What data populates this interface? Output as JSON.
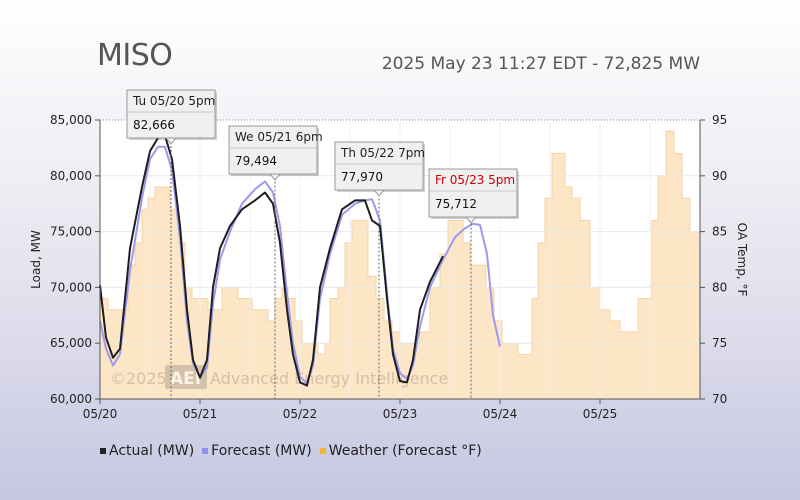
{
  "header": {
    "title": "MISO",
    "subtitle": "2025 May 23 11:27 EDT - 72,825 MW"
  },
  "watermark": "©2025 AEI Advanced Energy Intelligence",
  "watermark_parts": {
    "copyright": "©2025",
    "logo": "AEI",
    "company": "Advanced Energy Intelligence"
  },
  "legend": [
    {
      "label": "Actual (MW)",
      "color": "#222222"
    },
    {
      "label": "Forecast (MW)",
      "color": "#8f8fef"
    },
    {
      "label": "Weather (Forecast °F)",
      "color": "#f5b342"
    }
  ],
  "colors": {
    "actual": "#1e1e1e",
    "forecast": "#9a9af0",
    "weather_fill": "#fde6c6",
    "weather_line": "#f6d3a3",
    "tooltip_bg": "#f0f0f0",
    "tooltip_alert": "#cc0000",
    "grid": "#bbbbbb"
  },
  "chart_data": {
    "type": "line",
    "xlabel": "",
    "ylabel": "Load, MW",
    "y2label": "OA Temp, °F",
    "x_tick_labels": [
      "05/20",
      "05/21",
      "05/22",
      "05/23",
      "05/24",
      "05/25"
    ],
    "x_range_days": [
      0,
      6
    ],
    "ylim": [
      60000,
      85000
    ],
    "y_ticks": [
      "60,000",
      "65,000",
      "70,000",
      "75,000",
      "80,000",
      "85,000"
    ],
    "y2lim": [
      70,
      95
    ],
    "y2_ticks": [
      "70",
      "75",
      "80",
      "85",
      "90",
      "95"
    ],
    "legend_position": "bottom",
    "series": [
      {
        "name": "Actual (MW)",
        "x": [
          0,
          0.06,
          0.13,
          0.2,
          0.3,
          0.42,
          0.5,
          0.58,
          0.65,
          0.72,
          0.8,
          0.87,
          0.93,
          1.0,
          1.07,
          1.13,
          1.2,
          1.3,
          1.42,
          1.55,
          1.65,
          1.73,
          1.8,
          1.87,
          1.93,
          2.0,
          2.07,
          2.13,
          2.2,
          2.3,
          2.42,
          2.55,
          2.65,
          2.72,
          2.8,
          2.87,
          2.93,
          3.0,
          3.07,
          3.13,
          3.2,
          3.3,
          3.43
        ],
        "y": [
          70200,
          65500,
          63700,
          64500,
          73500,
          79000,
          82200,
          83400,
          83600,
          81500,
          75500,
          68000,
          63500,
          61900,
          63500,
          70000,
          73500,
          75500,
          77000,
          77800,
          78500,
          77500,
          74000,
          68000,
          64000,
          61500,
          61200,
          63500,
          70000,
          73500,
          77000,
          77800,
          77800,
          76000,
          75500,
          69000,
          64000,
          61600,
          61500,
          63500,
          68000,
          70500,
          72800
        ]
      },
      {
        "name": "Forecast (MW)",
        "x": [
          0,
          0.06,
          0.13,
          0.2,
          0.3,
          0.42,
          0.5,
          0.58,
          0.65,
          0.72,
          0.8,
          0.87,
          0.93,
          1.0,
          1.07,
          1.13,
          1.2,
          1.3,
          1.42,
          1.55,
          1.65,
          1.73,
          1.8,
          1.87,
          1.93,
          2.0,
          2.07,
          2.13,
          2.2,
          2.3,
          2.42,
          2.55,
          2.65,
          2.72,
          2.8,
          2.87,
          2.93,
          3.0,
          3.07,
          3.13,
          3.2,
          3.3,
          3.43,
          3.55,
          3.65,
          3.73,
          3.8,
          3.87,
          3.93,
          4.0
        ],
        "y": [
          67000,
          64500,
          63000,
          64000,
          71500,
          78000,
          81500,
          82600,
          82600,
          80500,
          74500,
          67000,
          63200,
          62000,
          62800,
          68500,
          72500,
          75000,
          77500,
          78800,
          79500,
          78500,
          75500,
          69500,
          65000,
          62000,
          61400,
          63000,
          69000,
          73000,
          76500,
          77500,
          77800,
          77900,
          76000,
          69500,
          64500,
          62300,
          61800,
          63000,
          66500,
          70000,
          72500,
          74500,
          75300,
          75700,
          75600,
          73000,
          67500,
          64700
        ]
      },
      {
        "name": "Weather (Forecast °F)",
        "axis": "y2",
        "x": [
          0,
          0.04,
          0.08,
          0.15,
          0.22,
          0.28,
          0.35,
          0.42,
          0.48,
          0.55,
          0.6,
          0.7,
          0.78,
          0.85,
          0.92,
          1.0,
          1.08,
          1.15,
          1.22,
          1.3,
          1.38,
          1.45,
          1.52,
          1.6,
          1.68,
          1.75,
          1.82,
          1.88,
          1.95,
          2.02,
          2.1,
          2.18,
          2.25,
          2.3,
          2.38,
          2.45,
          2.52,
          2.6,
          2.68,
          2.76,
          2.84,
          2.92,
          3.0,
          3.1,
          3.2,
          3.3,
          3.4,
          3.48,
          3.55,
          3.63,
          3.7,
          3.78,
          3.86,
          3.94,
          4.02,
          4.1,
          4.18,
          4.25,
          4.32,
          4.38,
          4.45,
          4.52,
          4.58,
          4.65,
          4.72,
          4.8,
          4.9,
          5.0,
          5.1,
          5.2,
          5.3,
          5.38,
          5.45,
          5.52,
          5.58,
          5.66,
          5.74,
          5.82,
          5.9,
          6.0
        ],
        "y": [
          79,
          79,
          78,
          78,
          78,
          82,
          84,
          87,
          88,
          89,
          89,
          87,
          84,
          80,
          79,
          79,
          78,
          78,
          80,
          80,
          79,
          79,
          78,
          78,
          77,
          79,
          80,
          79,
          77,
          75,
          75,
          74,
          75,
          79,
          80,
          84,
          86,
          86,
          81,
          79,
          77,
          76,
          75,
          75,
          76,
          80,
          83,
          86,
          86,
          84,
          82,
          82,
          80,
          77,
          75,
          75,
          74,
          74,
          79,
          84,
          88,
          92,
          92,
          89,
          88,
          86,
          80,
          78,
          77,
          76,
          76,
          79,
          79,
          86,
          90,
          94,
          92,
          88,
          85,
          80
        ]
      }
    ],
    "annotations": [
      {
        "label": "Tu 05/20 5pm",
        "value": "82,666",
        "x": 0.71,
        "y": 82666,
        "alert": false
      },
      {
        "label": "We 05/21 6pm",
        "value": "79,494",
        "x": 1.75,
        "y": 79494,
        "alert": false
      },
      {
        "label": "Th 05/22 7pm",
        "value": "77,970",
        "x": 2.79,
        "y": 77970,
        "alert": false
      },
      {
        "label": "Fr 05/23 5pm",
        "value": "75,712",
        "x": 3.71,
        "y": 75712,
        "alert": true
      }
    ],
    "grid": true
  }
}
